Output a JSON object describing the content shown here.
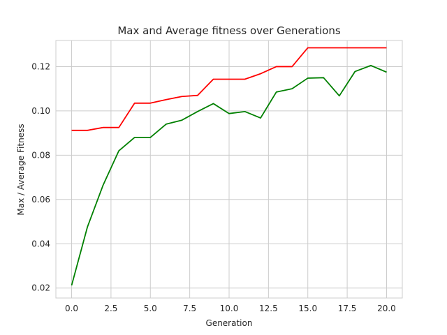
{
  "chart_data": {
    "type": "line",
    "title": "Max and Average fitness over Generations",
    "xlabel": "Generation",
    "ylabel": "Max / Average Fitness",
    "xlim": [
      -1,
      21
    ],
    "ylim": [
      0.0155,
      0.1318
    ],
    "xticks": [
      0.0,
      2.5,
      5.0,
      7.5,
      10.0,
      12.5,
      15.0,
      17.5,
      20.0
    ],
    "xtick_labels": [
      "0.0",
      "2.5",
      "5.0",
      "7.5",
      "10.0",
      "12.5",
      "15.0",
      "17.5",
      "20.0"
    ],
    "yticks": [
      0.02,
      0.04,
      0.06,
      0.08,
      0.1,
      0.12
    ],
    "ytick_labels": [
      "0.02",
      "0.04",
      "0.06",
      "0.08",
      "0.10",
      "0.12"
    ],
    "grid": true,
    "x": [
      0,
      1,
      2,
      3,
      4,
      5,
      6,
      7,
      8,
      9,
      10,
      11,
      12,
      13,
      14,
      15,
      16,
      17,
      18,
      19,
      20
    ],
    "series": [
      {
        "color": "#ff0000",
        "values": [
          0.0912,
          0.0912,
          0.0925,
          0.0925,
          0.1035,
          0.1035,
          0.1051,
          0.1065,
          0.107,
          0.1143,
          0.1143,
          0.1143,
          0.1168,
          0.12,
          0.12,
          0.1285,
          0.1285,
          0.1285,
          0.1285,
          0.1285,
          0.1285
        ]
      },
      {
        "color": "#008000",
        "values": [
          0.0212,
          0.0475,
          0.0665,
          0.082,
          0.088,
          0.088,
          0.094,
          0.0958,
          0.0997,
          0.1033,
          0.0988,
          0.0997,
          0.0968,
          0.1085,
          0.11,
          0.1148,
          0.115,
          0.1068,
          0.1178,
          0.1205,
          0.1175
        ]
      }
    ]
  }
}
